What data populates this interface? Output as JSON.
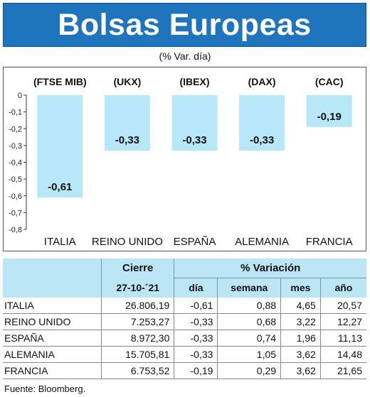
{
  "header": {
    "title": "Bolsas Europeas",
    "subtitle": "(% Var. día)"
  },
  "chart_data": {
    "type": "bar",
    "categories": [
      "ITALIA",
      "REINO UNIDO",
      "ESPAÑA",
      "ALEMANIA",
      "FRANCIA"
    ],
    "index_labels": [
      "(FTSE MIB)",
      "(UKX)",
      "(IBEX)",
      "(DAX)",
      "(CAC)"
    ],
    "values": [
      -0.61,
      -0.33,
      -0.33,
      -0.33,
      -0.19
    ],
    "value_labels": [
      "-0,61",
      "-0,33",
      "-0,33",
      "-0,33",
      "-0,19"
    ],
    "yticks": [
      "0",
      "-0,1",
      "-0,2",
      "-0,3",
      "-0,4",
      "-0,5",
      "-0,6",
      "-0,7",
      "-0,8"
    ],
    "ylim": [
      -0.8,
      0
    ],
    "bar_color": "#b6e8f8",
    "grid": false
  },
  "table": {
    "cierre_header": "Cierre",
    "variacion_header": "% Variación",
    "date_header": "27-10-´21",
    "sub_headers": [
      "día",
      "semana",
      "mes",
      "año"
    ],
    "rows": [
      {
        "country": "ITALIA",
        "cierre": "26.806,19",
        "dia": "-0,61",
        "semana": "0,88",
        "mes": "4,65",
        "anio": "20,57"
      },
      {
        "country": "REINO UNIDO",
        "cierre": "7.253,27",
        "dia": "-0,33",
        "semana": "0,68",
        "mes": "3,22",
        "anio": "12,27"
      },
      {
        "country": "ESPAÑA",
        "cierre": "8.972,30",
        "dia": "-0,33",
        "semana": "0,74",
        "mes": "1,96",
        "anio": "11,13"
      },
      {
        "country": "ALEMANIA",
        "cierre": "15.705,81",
        "dia": "-0,33",
        "semana": "1,05",
        "mes": "3,62",
        "anio": "14,48"
      },
      {
        "country": "FRANCIA",
        "cierre": "6.753,52",
        "dia": "-0,19",
        "semana": "0,29",
        "mes": "3,62",
        "anio": "21,65"
      }
    ]
  },
  "footer": {
    "source": "Fuente: Bloomberg."
  }
}
